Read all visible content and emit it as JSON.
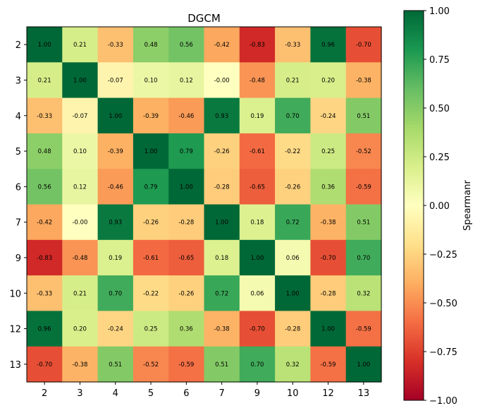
{
  "chart_data": {
    "type": "heatmap",
    "title": "DGCM",
    "xlabel": "",
    "ylabel": "",
    "x_labels": [
      "2",
      "3",
      "4",
      "5",
      "6",
      "7",
      "9",
      "10",
      "12",
      "13"
    ],
    "y_labels": [
      "2",
      "3",
      "4",
      "5",
      "6",
      "7",
      "9",
      "10",
      "12",
      "13"
    ],
    "values": [
      [
        "1.00",
        "0.21",
        "-0.33",
        "0.48",
        "0.56",
        "-0.42",
        "-0.83",
        "-0.33",
        "0.96",
        "-0.70"
      ],
      [
        "0.21",
        "1.00",
        "-0.07",
        "0.10",
        "0.12",
        "-0.00",
        "-0.48",
        "0.21",
        "0.20",
        "-0.38"
      ],
      [
        "-0.33",
        "-0.07",
        "1.00",
        "-0.39",
        "-0.46",
        "0.93",
        "0.19",
        "0.70",
        "-0.24",
        "0.51"
      ],
      [
        "0.48",
        "0.10",
        "-0.39",
        "1.00",
        "0.79",
        "-0.26",
        "-0.61",
        "-0.22",
        "0.25",
        "-0.52"
      ],
      [
        "0.56",
        "0.12",
        "-0.46",
        "0.79",
        "1.00",
        "-0.28",
        "-0.65",
        "-0.26",
        "0.36",
        "-0.59"
      ],
      [
        "-0.42",
        "-0.00",
        "0.93",
        "-0.26",
        "-0.28",
        "1.00",
        "0.18",
        "0.72",
        "-0.38",
        "0.51"
      ],
      [
        "-0.83",
        "-0.48",
        "0.19",
        "-0.61",
        "-0.65",
        "0.18",
        "1.00",
        "0.06",
        "-0.70",
        "0.70"
      ],
      [
        "-0.33",
        "0.21",
        "0.70",
        "-0.22",
        "-0.26",
        "0.72",
        "0.06",
        "1.00",
        "-0.28",
        "0.32"
      ],
      [
        "0.96",
        "0.20",
        "-0.24",
        "0.25",
        "0.36",
        "-0.38",
        "-0.70",
        "-0.28",
        "1.00",
        "-0.59"
      ],
      [
        "-0.70",
        "-0.38",
        "0.51",
        "-0.52",
        "-0.59",
        "0.51",
        "0.70",
        "0.32",
        "-0.59",
        "1.00"
      ]
    ],
    "colorbar": {
      "label": "Spearmanr",
      "range": [
        -1.0,
        1.0
      ],
      "ticks": [
        "1.00",
        "0.75",
        "0.50",
        "0.25",
        "0.00",
        "−0.25",
        "−0.50",
        "−0.75",
        "−1.00"
      ],
      "tick_values": [
        1.0,
        0.75,
        0.5,
        0.25,
        0.0,
        -0.25,
        -0.5,
        -0.75,
        -1.0
      ],
      "colormap": "RdYlGn"
    },
    "grid": false
  }
}
